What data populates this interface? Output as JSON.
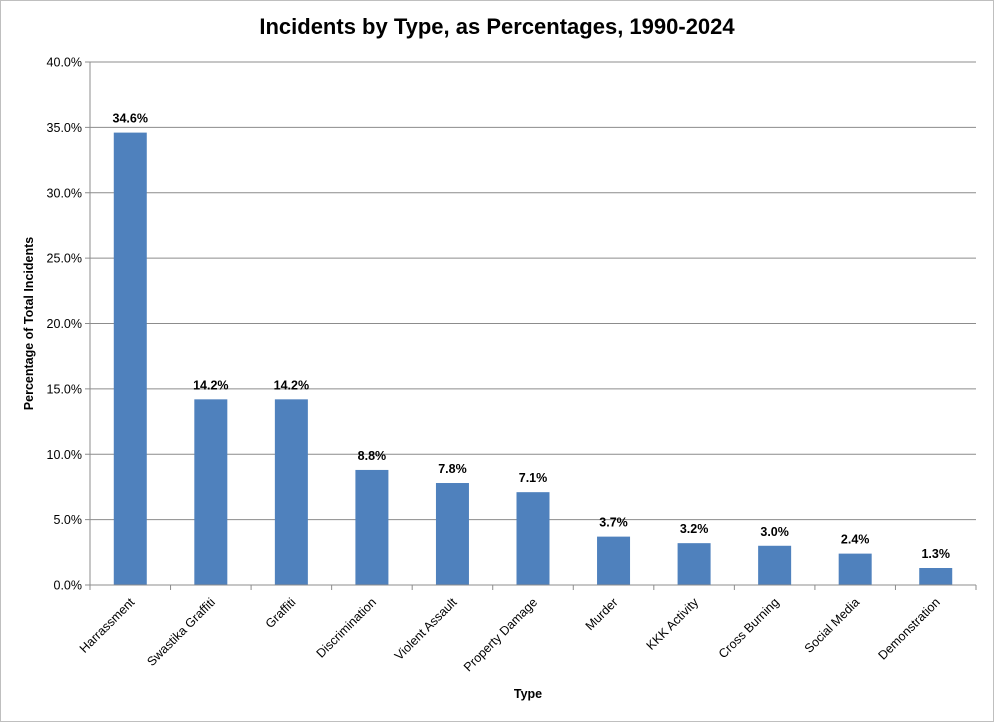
{
  "chart_data": {
    "type": "bar",
    "title": "Incidents by Type, as Percentages, 1990-2024",
    "xlabel": "Type",
    "ylabel": "Percentage of Total Incidents",
    "categories": [
      "Harrassment",
      "Swastika Graffiti",
      "Graffiti",
      "Discrimination",
      "Violent Assault",
      "Property Damage",
      "Murder",
      "KKK Activity",
      "Cross Burning",
      "Social Media",
      "Demonstration"
    ],
    "values": [
      34.6,
      14.2,
      14.2,
      8.8,
      7.8,
      7.1,
      3.7,
      3.2,
      3.0,
      2.4,
      1.3
    ],
    "data_labels": [
      "34.6%",
      "14.2%",
      "14.2%",
      "8.8%",
      "7.8%",
      "7.1%",
      "3.7%",
      "3.2%",
      "3.0%",
      "2.4%",
      "1.3%"
    ],
    "y_ticks": [
      0,
      5,
      10,
      15,
      20,
      25,
      30,
      35,
      40
    ],
    "y_tick_labels": [
      "0.0%",
      "5.0%",
      "10.0%",
      "15.0%",
      "20.0%",
      "25.0%",
      "30.0%",
      "35.0%",
      "40.0%"
    ],
    "ylim": [
      0,
      40
    ],
    "grid": true,
    "legend": "none",
    "bar_color": "#4f81bd",
    "grid_color": "#8c8c8c"
  }
}
